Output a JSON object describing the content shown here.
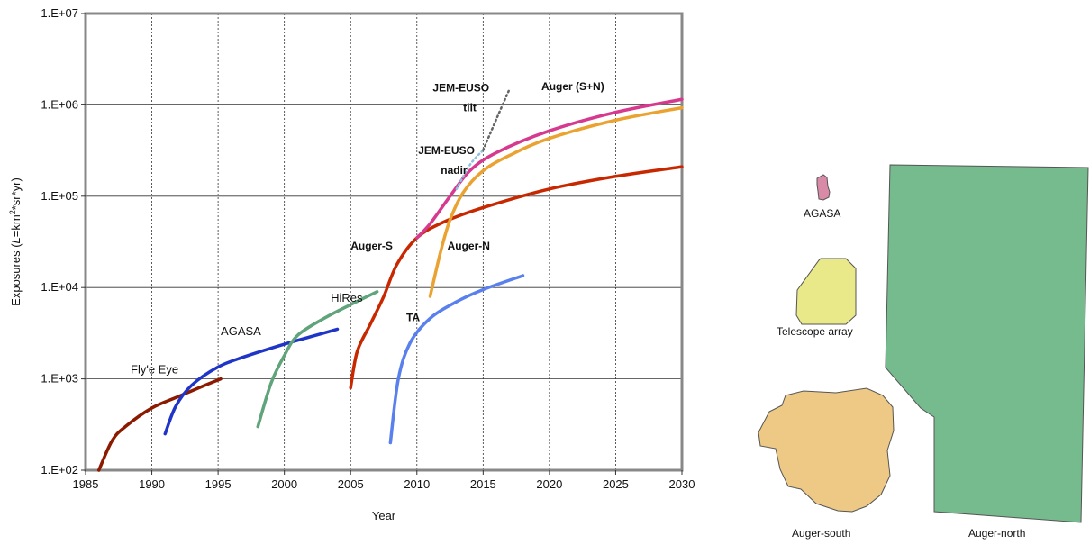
{
  "chart_data": {
    "type": "line",
    "xlabel": "Year",
    "ylabel_prefix": "Exposures (",
    "ylabel_italic": "L",
    "ylabel_mid": "=km",
    "ylabel_sup": "2",
    "ylabel_suffix": "*sr*yr)",
    "xlim": [
      1985,
      2030
    ],
    "ylim": [
      100,
      10000000
    ],
    "y_scale": "log",
    "grid": true,
    "x_ticks": [
      "1985",
      "1990",
      "1995",
      "2000",
      "2005",
      "2010",
      "2015",
      "2020",
      "2025",
      "2030"
    ],
    "y_ticks": [
      "1.E+02",
      "1.E+03",
      "1.E+04",
      "1.E+05",
      "1.E+06",
      "1.E+07"
    ],
    "series": [
      {
        "name": "Fly'e Eye",
        "color": "#8b1a00",
        "label_bold": false,
        "x": [
          1986,
          1987,
          1988,
          1990,
          1992,
          1994,
          1995.2
        ],
        "y": [
          100,
          210,
          300,
          480,
          640,
          850,
          1000
        ]
      },
      {
        "name": "AGASA",
        "color": "#1f35c8",
        "label_bold": false,
        "x": [
          1991,
          1991.8,
          1993,
          1995,
          1997,
          2000,
          2002,
          2004
        ],
        "y": [
          250,
          500,
          850,
          1350,
          1750,
          2400,
          2900,
          3500
        ]
      },
      {
        "name": "HiRes",
        "color": "#5fa47a",
        "label_bold": false,
        "x": [
          1998,
          1999,
          2000,
          2001,
          2003,
          2005,
          2007
        ],
        "y": [
          300,
          900,
          1800,
          3000,
          4600,
          6500,
          9000
        ]
      },
      {
        "name": "Auger-S",
        "color": "#c82800",
        "label_bold": true,
        "x": [
          2005,
          2005.5,
          2006.5,
          2007.5,
          2008.5,
          2010,
          2012,
          2015,
          2020,
          2025,
          2030
        ],
        "y": [
          800,
          2000,
          4000,
          8000,
          18000,
          35000,
          52000,
          75000,
          120000,
          165000,
          210000
        ]
      },
      {
        "name": "Auger-N",
        "color": "#eaa331",
        "label_bold": true,
        "x": [
          2011,
          2011.8,
          2012.5,
          2013.5,
          2015,
          2017,
          2020,
          2025,
          2030
        ],
        "y": [
          8000,
          25000,
          55000,
          110000,
          190000,
          280000,
          430000,
          680000,
          930000
        ]
      },
      {
        "name": "Auger (S+N)",
        "color": "#d63a8e",
        "label_bold": true,
        "x": [
          2010,
          2011,
          2012.5,
          2014,
          2016,
          2020,
          2025,
          2030
        ],
        "y": [
          35000,
          50000,
          100000,
          190000,
          300000,
          520000,
          830000,
          1150000
        ]
      },
      {
        "name": "TA",
        "color": "#5a80ee",
        "label_bold": true,
        "x": [
          2008,
          2008.6,
          2009.5,
          2011,
          2013,
          2015,
          2018
        ],
        "y": [
          200,
          1000,
          2500,
          4600,
          7000,
          9500,
          13500
        ]
      },
      {
        "name": "JEM-EUSO nadir",
        "color": "#8fc3e0",
        "label_bold": true,
        "dotted": true,
        "x": [
          2013,
          2014,
          2015
        ],
        "y": [
          120000,
          220000,
          320000
        ]
      },
      {
        "name": "JEM-EUSO tilt",
        "color": "#666666",
        "label_bold": true,
        "dotted": true,
        "x": [
          2015,
          2016,
          2017
        ],
        "y": [
          320000,
          700000,
          1500000
        ]
      }
    ],
    "annotations": [
      {
        "text": "Fly'e Eye",
        "x": 1988.4,
        "y": 1150,
        "bold": false
      },
      {
        "text": "AGASA",
        "x": 1995.2,
        "y": 3000,
        "bold": false
      },
      {
        "text": "HiRes",
        "x": 2003.5,
        "y": 7000,
        "bold": false
      },
      {
        "text": "Auger-S",
        "x": 2005,
        "y": 26000,
        "bold": true
      },
      {
        "text": "Auger-N",
        "x": 2012.3,
        "y": 26000,
        "bold": true
      },
      {
        "text": "TA",
        "x": 2009.2,
        "y": 4300,
        "bold": true
      },
      {
        "text": "Auger (S+N)",
        "x": 2019.4,
        "y": 1450000,
        "bold": true
      },
      {
        "text": "JEM-EUSO",
        "x": 2010.1,
        "y": 290000,
        "bold": true
      },
      {
        "text": "nadir",
        "x": 2011.8,
        "y": 175000,
        "bold": true
      },
      {
        "text": "JEM-EUSO",
        "x": 2011.2,
        "y": 1400000,
        "bold": true
      },
      {
        "text": "tilt",
        "x": 2013.5,
        "y": 850000,
        "bold": true
      }
    ]
  },
  "map": {
    "labels": {
      "agasa": "AGASA",
      "telescope_array": "Telescope array",
      "auger_south": "Auger-south",
      "auger_north": "Auger-north"
    },
    "colors": {
      "agasa": "#d98aa6",
      "telescope_array": "#e9e98a",
      "auger_south": "#edc985",
      "auger_north": "#76bb8e"
    }
  }
}
